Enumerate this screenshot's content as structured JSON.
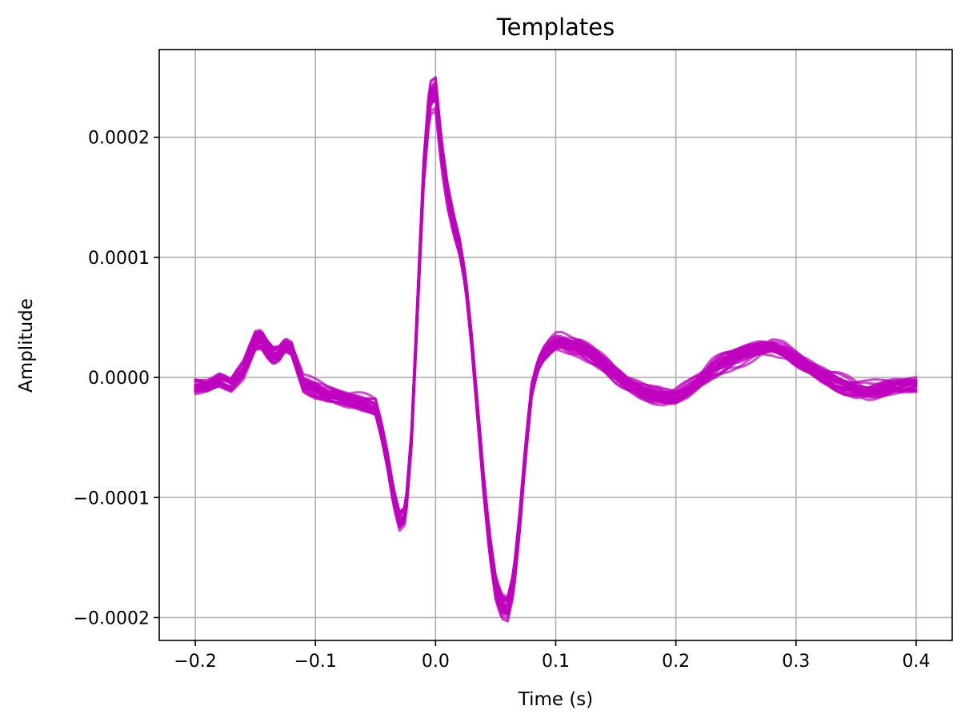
{
  "chart_data": {
    "type": "line",
    "title": "Templates",
    "xlabel": "Time (s)",
    "ylabel": "Amplitude",
    "xlim": [
      -0.23,
      0.43
    ],
    "ylim": [
      -0.000219,
      0.000273
    ],
    "grid": true,
    "color": "#bf00bf",
    "series_count": 30,
    "x_ticks": [
      -0.2,
      -0.1,
      0.0,
      0.1,
      0.2,
      0.3,
      0.4
    ],
    "x_tick_labels": [
      "−0.2",
      "−0.1",
      "0.0",
      "0.1",
      "0.2",
      "0.3",
      "0.4"
    ],
    "y_ticks": [
      -0.0002,
      -0.0001,
      0.0,
      0.0001,
      0.0002
    ],
    "y_tick_labels": [
      "−0.0002",
      "−0.0001",
      "0.0000",
      "0.0001",
      "0.0002"
    ],
    "template": {
      "x": [
        -0.2,
        -0.19,
        -0.18,
        -0.17,
        -0.16,
        -0.15,
        -0.145,
        -0.14,
        -0.135,
        -0.13,
        -0.125,
        -0.12,
        -0.115,
        -0.11,
        -0.1,
        -0.09,
        -0.08,
        -0.07,
        -0.06,
        -0.05,
        -0.045,
        -0.04,
        -0.035,
        -0.03,
        -0.025,
        -0.02,
        -0.015,
        -0.01,
        -0.005,
        0.0,
        0.005,
        0.01,
        0.015,
        0.02,
        0.025,
        0.03,
        0.035,
        0.04,
        0.045,
        0.05,
        0.055,
        0.06,
        0.065,
        0.07,
        0.075,
        0.08,
        0.085,
        0.09,
        0.095,
        0.1,
        0.105,
        0.11,
        0.12,
        0.13,
        0.14,
        0.15,
        0.16,
        0.17,
        0.18,
        0.19,
        0.2,
        0.21,
        0.22,
        0.23,
        0.24,
        0.25,
        0.26,
        0.27,
        0.28,
        0.29,
        0.3,
        0.31,
        0.32,
        0.33,
        0.34,
        0.35,
        0.36,
        0.37,
        0.38,
        0.39,
        0.4
      ],
      "y": [
        -8e-06,
        -7e-06,
        -2e-06,
        -6e-06,
        5e-06,
        3e-05,
        3.2e-05,
        2.4e-05,
        1.8e-05,
        2e-05,
        2.7e-05,
        2.5e-05,
        1e-05,
        -5e-06,
        -1e-05,
        -1.4e-05,
        -1.6e-05,
        -1.9e-05,
        -2.2e-05,
        -2.5e-05,
        -4.5e-05,
        -7e-05,
        -0.0001,
        -0.00012,
        -0.000115,
        -5e-05,
        6e-05,
        0.00017,
        0.000235,
        0.00024,
        0.00019,
        0.000155,
        0.00013,
        0.00011,
        8e-05,
        3e-05,
        -3e-05,
        -9e-05,
        -0.00014,
        -0.000175,
        -0.00019,
        -0.000192,
        -0.00017,
        -0.00012,
        -6e-05,
        -1e-05,
        1e-05,
        2e-05,
        2.6e-05,
        3e-05,
        3e-05,
        2.8e-05,
        2.5e-05,
        1.8e-05,
        1e-05,
        2e-06,
        -5e-06,
        -1e-05,
        -1.4e-05,
        -1.6e-05,
        -1.5e-05,
        -1e-05,
        -3e-06,
        6e-06,
        1.2e-05,
        1.7e-05,
        2.1e-05,
        2.4e-05,
        2.5e-05,
        2.2e-05,
        1.6e-05,
        1e-05,
        3e-06,
        -3e-06,
        -7e-06,
        -1e-05,
        -1.1e-05,
        -1e-05,
        -8e-06,
        -7e-06,
        -6e-06
      ]
    }
  }
}
